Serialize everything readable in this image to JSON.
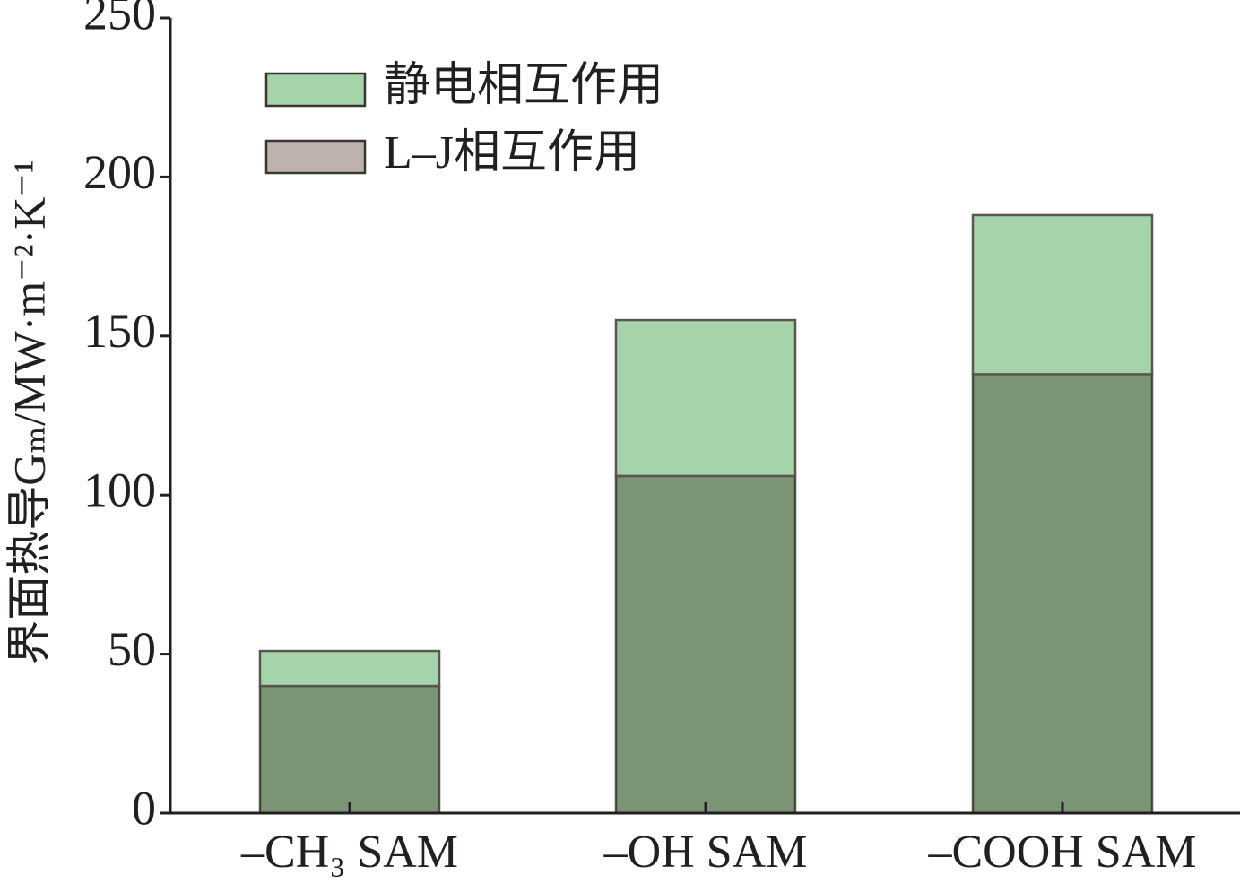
{
  "chart_data": {
    "type": "stacked_bar",
    "ylabel": "界面热导Gₘ/MW·m⁻²·K⁻¹",
    "categories": [
      "–CH₃ SAM",
      "–OH SAM",
      "–COOH SAM"
    ],
    "series": [
      {
        "name": "L–J相互作用",
        "color": "#bdb2ae",
        "values": [
          40,
          106,
          138
        ]
      },
      {
        "name": "静电相互作用",
        "color": "#a5d4ab",
        "values": [
          11,
          49,
          50
        ]
      }
    ],
    "ylim": [
      0,
      250
    ],
    "yticks": [
      0,
      50,
      100,
      150,
      200,
      250
    ]
  }
}
